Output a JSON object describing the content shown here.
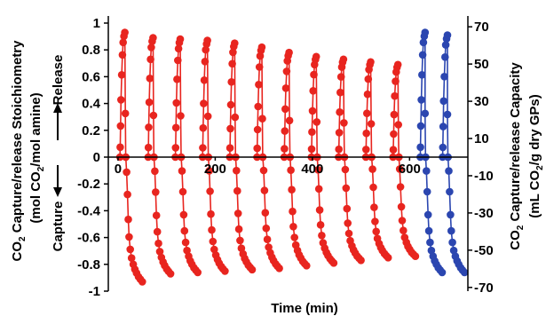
{
  "chart_data": {
    "type": "scatter",
    "xlabel": "Time (min)",
    "ylabel_left": {
      "line1_pre": "CO",
      "line1_sub": "2",
      "line1_post": " Capture/release Stoichiometry",
      "line2_pre": "(mol CO",
      "line2_sub": "2",
      "line2_post": "/mol amine)"
    },
    "ylabel_right": {
      "line1_pre": "CO",
      "line1_sub": "2",
      "line1_post": " Capture/release Capacity",
      "line2_pre": "(mL CO",
      "line2_sub": "2",
      "line2_post": "/g dry GPs)"
    },
    "annotations": {
      "release": "Release",
      "capture": "Capture"
    },
    "xlim": [
      -20,
      720
    ],
    "ylim_left": [
      -1,
      1
    ],
    "ylim_right": [
      -72,
      72
    ],
    "xticks": [
      0,
      200,
      400,
      600
    ],
    "yticks_left": [
      1,
      0.8,
      0.6,
      0.4,
      0.2,
      0,
      -0.2,
      -0.4,
      -0.6,
      -0.8,
      -1
    ],
    "yticks_left_labels": [
      "1",
      "0.8",
      "0.6",
      "0.4",
      "0.2",
      "0",
      "-0.2",
      "-0.4",
      "-0.6",
      "-0.8",
      "-1"
    ],
    "yticks_right": [
      70,
      50,
      30,
      10,
      -10,
      -30,
      -50,
      -70
    ],
    "yticks_right_labels": [
      "70",
      "50",
      "30",
      "10",
      "-10",
      "-30",
      "-50",
      "-70"
    ],
    "grid": false,
    "colors": {
      "red": "#e8251f",
      "blue": "#2b46b0"
    },
    "series": [
      {
        "color": "red",
        "cycles": [
          {
            "release_start": 4,
            "release_peak": 0.93,
            "capture_start": 16,
            "capture_min": -0.93
          },
          {
            "release_start": 62,
            "release_peak": 0.89,
            "capture_start": 74,
            "capture_min": -0.87
          },
          {
            "release_start": 118,
            "release_peak": 0.88,
            "capture_start": 130,
            "capture_min": -0.86
          },
          {
            "release_start": 174,
            "release_peak": 0.87,
            "capture_start": 186,
            "capture_min": -0.85
          },
          {
            "release_start": 230,
            "release_peak": 0.85,
            "capture_start": 242,
            "capture_min": -0.84
          },
          {
            "release_start": 286,
            "release_peak": 0.82,
            "capture_start": 298,
            "capture_min": -0.83
          },
          {
            "release_start": 342,
            "release_peak": 0.78,
            "capture_start": 354,
            "capture_min": -0.81
          },
          {
            "release_start": 398,
            "release_peak": 0.75,
            "capture_start": 410,
            "capture_min": -0.79
          },
          {
            "release_start": 454,
            "release_peak": 0.73,
            "capture_start": 466,
            "capture_min": -0.77
          },
          {
            "release_start": 510,
            "release_peak": 0.71,
            "capture_start": 522,
            "capture_min": -0.75
          },
          {
            "release_start": 566,
            "release_peak": 0.69,
            "capture_start": 578,
            "capture_min": -0.74
          }
        ]
      },
      {
        "color": "blue",
        "cycles": [
          {
            "release_start": 622,
            "release_peak": 0.93,
            "capture_start": 633,
            "capture_min": -0.86
          },
          {
            "release_start": 668,
            "release_peak": 0.91,
            "capture_start": 679,
            "capture_min": -0.86
          }
        ]
      }
    ]
  }
}
